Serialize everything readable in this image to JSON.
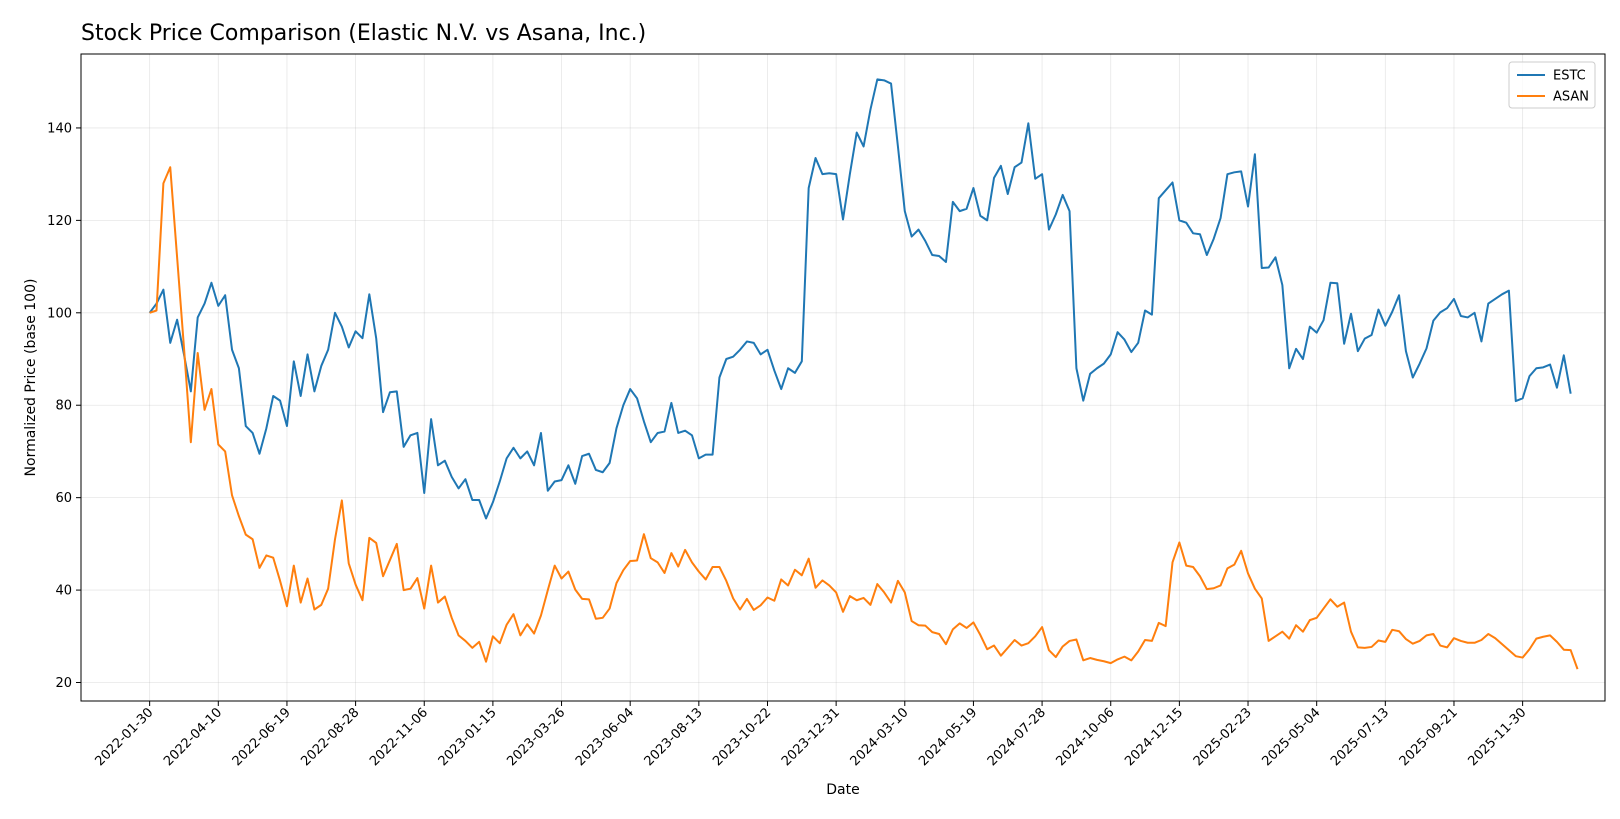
{
  "chart_data": {
    "type": "line",
    "title": "Stock Price Comparison (Elastic N.V. vs Asana, Inc.)",
    "xlabel": "Date",
    "ylabel": "Normalized Price (base 100)",
    "x_tick_labels": [
      "2022-01-30",
      "2022-04-10",
      "2022-06-19",
      "2022-08-28",
      "2022-11-06",
      "2023-01-15",
      "2023-03-26",
      "2023-06-04",
      "2023-08-13",
      "2023-10-22",
      "2023-12-31",
      "2024-03-10",
      "2024-05-19",
      "2024-07-28",
      "2024-10-06",
      "2024-12-15",
      "2025-02-23",
      "2025-05-04",
      "2025-07-13",
      "2025-09-21",
      "2025-11-30"
    ],
    "x_start": "2022-01-30",
    "x_step_days": 7,
    "xlim_weeks": [
      -10,
      212
    ],
    "y_ticks": [
      20,
      40,
      60,
      80,
      100,
      120,
      140
    ],
    "ylim": [
      16,
      156
    ],
    "grid": true,
    "legend_position": "top-right",
    "series": [
      {
        "name": "ESTC",
        "color": "#1f77b4",
        "values": [
          100,
          102,
          105,
          93.5,
          98.5,
          91,
          83,
          99,
          102,
          106.5,
          101.5,
          103.8,
          92,
          88,
          75.5,
          74,
          69.5,
          75,
          82,
          81,
          75.5,
          89.5,
          82,
          91,
          83,
          88.5,
          92,
          100,
          97,
          92.5,
          96,
          94.5,
          104,
          94.5,
          78.5,
          82.8,
          83,
          71,
          73.5,
          74,
          61,
          77,
          67,
          68,
          64.5,
          62,
          64,
          59.5,
          59.5,
          55.5,
          59,
          63.5,
          68.5,
          70.8,
          68.5,
          70,
          67,
          74,
          61.5,
          63.5,
          63.8,
          67,
          63,
          69,
          69.5,
          66,
          65.5,
          67.5,
          75,
          80,
          83.5,
          81.5,
          76.5,
          72,
          74,
          74.3,
          80.5,
          74,
          74.5,
          73.5,
          68.5,
          69.3,
          69.3,
          86,
          90,
          90.5,
          92,
          93.8,
          93.5,
          91,
          92,
          87.5,
          83.5,
          88,
          87,
          89.5,
          127,
          133.5,
          130,
          130.2,
          130,
          120.2,
          130,
          139,
          136,
          144,
          150.5,
          150.3,
          149.6,
          136,
          122,
          116.5,
          118,
          115.5,
          112.5,
          112.3,
          111,
          124,
          122,
          122.5,
          127,
          121,
          120,
          129.2,
          131.8,
          125.7,
          131.5,
          132.5,
          141,
          129,
          130,
          118,
          121.3,
          125.5,
          122,
          88,
          81,
          86.8,
          88,
          89,
          91,
          95.8,
          94.2,
          91.5,
          93.5,
          100.5,
          99.6,
          124.8,
          126.5,
          128.2,
          120,
          119.5,
          117.2,
          117,
          112.5,
          116,
          120.5,
          130,
          130.4,
          130.6,
          123,
          134.3,
          109.7,
          109.8,
          112,
          106,
          88,
          92.2,
          90,
          97,
          95.7,
          98.4,
          106.5,
          106.4,
          93.3,
          99.8,
          91.7,
          94.4,
          95.2,
          100.7,
          97.2,
          100.2,
          103.8,
          91.7,
          86,
          89,
          92.3,
          98.3,
          100.1,
          101,
          103,
          99.3,
          99,
          100,
          93.8,
          102,
          103,
          104,
          104.8,
          80.9,
          81.5,
          86.3,
          88,
          88.2,
          88.8,
          83.8,
          90.8,
          82.5
        ]
      },
      {
        "name": "ASAN",
        "color": "#ff7f0e",
        "values": [
          100,
          100.5,
          128,
          131.5,
          112,
          92.5,
          72,
          91.3,
          79,
          83.5,
          71.5,
          70,
          60.5,
          56,
          52,
          51,
          44.8,
          47.5,
          47,
          42,
          36.5,
          45.3,
          37.3,
          42.5,
          35.8,
          36.8,
          40.3,
          51,
          59.4,
          45.8,
          41.2,
          37.8,
          51.3,
          50.2,
          43,
          46.5,
          50,
          40,
          40.3,
          42.6,
          36,
          45.3,
          37.3,
          38.6,
          34,
          30.2,
          29,
          27.5,
          28.8,
          24.5,
          30,
          28.5,
          32.5,
          34.8,
          30.2,
          32.6,
          30.6,
          34.5,
          40,
          45.3,
          42.5,
          44,
          40.1,
          38.1,
          38,
          33.8,
          34,
          36,
          41.5,
          44.3,
          46.3,
          46.4,
          52.1,
          46.9,
          46,
          43.7,
          48,
          45.1,
          48.7,
          46,
          44,
          42.3,
          45,
          45,
          42,
          38.2,
          35.8,
          38.1,
          35.7,
          36.7,
          38.4,
          37.7,
          42.3,
          41,
          44.4,
          43.2,
          46.8,
          40.5,
          42.1,
          41,
          39.5,
          35.3,
          38.7,
          37.8,
          38.3,
          36.8,
          41.3,
          39.5,
          37.3,
          42,
          39.5,
          33.3,
          32.4,
          32.3,
          30.9,
          30.5,
          28.3,
          31.5,
          32.8,
          31.8,
          33,
          30.3,
          27.2,
          28,
          25.8,
          27.5,
          29.2,
          28,
          28.5,
          30,
          32,
          27,
          25.5,
          27.8,
          29,
          29.3,
          24.8,
          25.3,
          24.9,
          24.6,
          24.2,
          25,
          25.6,
          24.8,
          26.7,
          29.2,
          29,
          32.9,
          32.2,
          46,
          50.3,
          45.3,
          45,
          43,
          40.2,
          40.4,
          41,
          44.7,
          45.5,
          48.5,
          43.6,
          40.3,
          38.2,
          29,
          30,
          31,
          29.5,
          32.4,
          31,
          33.5,
          34,
          36,
          38,
          36.4,
          37.3,
          31,
          27.6,
          27.5,
          27.7,
          29.1,
          28.8,
          31.4,
          31.1,
          29.4,
          28.4,
          29,
          30.2,
          30.5,
          28,
          27.6,
          29.6,
          29,
          28.6,
          28.6,
          29.2,
          30.5,
          29.6,
          28.3,
          27,
          25.7,
          25.4,
          27.2,
          29.5,
          29.9,
          30.2,
          28.8,
          27.1,
          27,
          22.9
        ]
      }
    ]
  }
}
